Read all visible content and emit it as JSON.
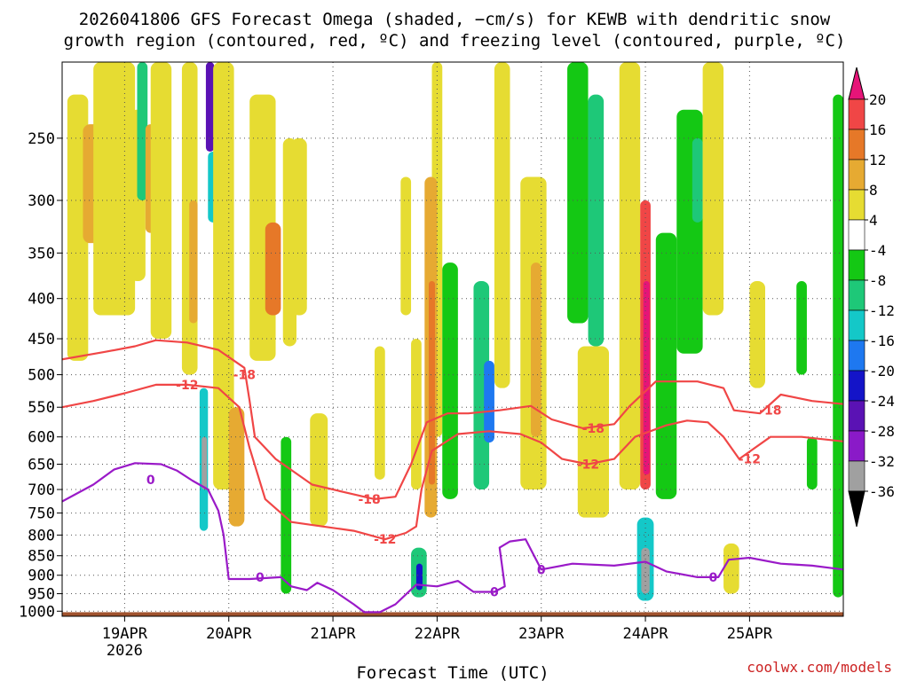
{
  "chart_data": {
    "type": "heatmap",
    "title": {
      "line1": "2026041806 GFS Forecast Omega (shaded, −cm/s) for KEWB with dendritic snow",
      "line2": "growth region (contoured, red, ºC) and freezing level (contoured, purple, ºC)"
    },
    "xlabel": "Forecast Time (UTC)",
    "ylabel": "",
    "credit": "coolwx.com/models",
    "x_range_days": [
      -0.6,
      6.9
    ],
    "x_ticks": [
      {
        "day": 0,
        "label": "19APR",
        "sub": "2026"
      },
      {
        "day": 1,
        "label": "20APR",
        "sub": ""
      },
      {
        "day": 2,
        "label": "21APR",
        "sub": ""
      },
      {
        "day": 3,
        "label": "22APR",
        "sub": ""
      },
      {
        "day": 4,
        "label": "23APR",
        "sub": ""
      },
      {
        "day": 5,
        "label": "24APR",
        "sub": ""
      },
      {
        "day": 6,
        "label": "25APR",
        "sub": ""
      }
    ],
    "y_ticks": [
      250,
      300,
      350,
      400,
      450,
      500,
      550,
      600,
      650,
      700,
      750,
      800,
      850,
      900,
      950,
      1000
    ],
    "y_range_hpa": [
      200,
      1015
    ],
    "colorbar": {
      "levels": [
        -36,
        -32,
        -28,
        -24,
        -20,
        -16,
        -12,
        -8,
        -4,
        4,
        8,
        12,
        16,
        20
      ],
      "colors": [
        "#000000",
        "#a0a0a0",
        "#8a1ac8",
        "#5a12b4",
        "#1414c8",
        "#1e78f0",
        "#14c8c8",
        "#1ec878",
        "#14c814",
        "#ffffff",
        "#e6dc32",
        "#e6aa32",
        "#e67828",
        "#f04646",
        "#e61478"
      ]
    },
    "omega_cells": [
      {
        "d0": -0.55,
        "d1": -0.35,
        "p0": 220,
        "p1": 480,
        "v": 6
      },
      {
        "d0": -0.4,
        "d1": -0.2,
        "p0": 240,
        "p1": 340,
        "v": 10
      },
      {
        "d0": -0.25,
        "d1": -0.05,
        "p0": 260,
        "p1": 360,
        "v": 13
      },
      {
        "d0": -0.3,
        "d1": 0.1,
        "p0": 200,
        "p1": 420,
        "v": 5
      },
      {
        "d0": 0.05,
        "d1": 0.2,
        "p0": 230,
        "p1": 380,
        "v": 6
      },
      {
        "d0": 0.12,
        "d1": 0.22,
        "p0": 200,
        "p1": 300,
        "v": -12
      },
      {
        "d0": 0.2,
        "d1": 0.3,
        "p0": 240,
        "p1": 330,
        "v": 10
      },
      {
        "d0": 0.25,
        "d1": 0.45,
        "p0": 200,
        "p1": 450,
        "v": 5
      },
      {
        "d0": 0.55,
        "d1": 0.7,
        "p0": 200,
        "p1": 500,
        "v": 5
      },
      {
        "d0": 0.62,
        "d1": 0.7,
        "p0": 300,
        "p1": 430,
        "v": 9
      },
      {
        "d0": 0.78,
        "d1": 0.86,
        "p0": 200,
        "p1": 260,
        "v": -26
      },
      {
        "d0": 0.8,
        "d1": 0.9,
        "p0": 260,
        "p1": 320,
        "v": -16
      },
      {
        "d0": 0.72,
        "d1": 0.8,
        "p0": 520,
        "p1": 790,
        "v": -14
      },
      {
        "d0": 0.74,
        "d1": 0.79,
        "p0": 600,
        "p1": 700,
        "v": -36
      },
      {
        "d0": 0.85,
        "d1": 1.05,
        "p0": 200,
        "p1": 700,
        "v": 6
      },
      {
        "d0": 1.0,
        "d1": 1.15,
        "p0": 550,
        "p1": 780,
        "v": 9
      },
      {
        "d0": 1.2,
        "d1": 1.45,
        "p0": 220,
        "p1": 480,
        "v": 6
      },
      {
        "d0": 1.35,
        "d1": 1.5,
        "p0": 320,
        "p1": 420,
        "v": 12
      },
      {
        "d0": 1.52,
        "d1": 1.65,
        "p0": 250,
        "p1": 460,
        "v": 5
      },
      {
        "d0": 1.5,
        "d1": 1.6,
        "p0": 600,
        "p1": 950,
        "v": -8
      },
      {
        "d0": 1.6,
        "d1": 1.75,
        "p0": 250,
        "p1": 420,
        "v": 6
      },
      {
        "d0": 1.78,
        "d1": 1.95,
        "p0": 560,
        "p1": 780,
        "v": 5
      },
      {
        "d0": 2.4,
        "d1": 2.5,
        "p0": 460,
        "p1": 680,
        "v": 5
      },
      {
        "d0": 2.65,
        "d1": 2.75,
        "p0": 280,
        "p1": 420,
        "v": 5
      },
      {
        "d0": 2.75,
        "d1": 2.85,
        "p0": 450,
        "p1": 700,
        "v": 5
      },
      {
        "d0": 2.95,
        "d1": 3.05,
        "p0": 200,
        "p1": 600,
        "v": 5
      },
      {
        "d0": 2.88,
        "d1": 3.0,
        "p0": 280,
        "p1": 760,
        "v": 10
      },
      {
        "d0": 2.92,
        "d1": 2.98,
        "p0": 380,
        "p1": 690,
        "v": 15
      },
      {
        "d0": 2.75,
        "d1": 2.9,
        "p0": 830,
        "p1": 960,
        "v": -12
      },
      {
        "d0": 2.8,
        "d1": 2.86,
        "p0": 870,
        "p1": 940,
        "v": -24
      },
      {
        "d0": 3.05,
        "d1": 3.2,
        "p0": 360,
        "p1": 720,
        "v": -8
      },
      {
        "d0": 3.35,
        "d1": 3.5,
        "p0": 380,
        "p1": 700,
        "v": -10
      },
      {
        "d0": 3.45,
        "d1": 3.55,
        "p0": 480,
        "p1": 610,
        "v": -18
      },
      {
        "d0": 3.55,
        "d1": 3.7,
        "p0": 200,
        "p1": 520,
        "v": 5
      },
      {
        "d0": 3.8,
        "d1": 4.05,
        "p0": 280,
        "p1": 700,
        "v": 6
      },
      {
        "d0": 3.9,
        "d1": 4.0,
        "p0": 360,
        "p1": 600,
        "v": 11
      },
      {
        "d0": 4.25,
        "d1": 4.45,
        "p0": 200,
        "p1": 430,
        "v": -8
      },
      {
        "d0": 4.45,
        "d1": 4.6,
        "p0": 220,
        "p1": 460,
        "v": -12
      },
      {
        "d0": 4.35,
        "d1": 4.65,
        "p0": 460,
        "p1": 760,
        "v": 5
      },
      {
        "d0": 4.75,
        "d1": 4.95,
        "p0": 200,
        "p1": 700,
        "v": 5
      },
      {
        "d0": 4.95,
        "d1": 5.05,
        "p0": 300,
        "p1": 700,
        "v": 18
      },
      {
        "d0": 4.98,
        "d1": 5.04,
        "p0": 380,
        "p1": 670,
        "v": 21
      },
      {
        "d0": 4.92,
        "d1": 5.08,
        "p0": 760,
        "p1": 970,
        "v": -14
      },
      {
        "d0": 4.96,
        "d1": 5.04,
        "p0": 830,
        "p1": 950,
        "v": -36
      },
      {
        "d0": 5.1,
        "d1": 5.3,
        "p0": 330,
        "p1": 720,
        "v": -8
      },
      {
        "d0": 5.3,
        "d1": 5.55,
        "p0": 230,
        "p1": 470,
        "v": -8
      },
      {
        "d0": 5.45,
        "d1": 5.55,
        "p0": 250,
        "p1": 320,
        "v": -12
      },
      {
        "d0": 5.55,
        "d1": 5.75,
        "p0": 200,
        "p1": 420,
        "v": 5
      },
      {
        "d0": 5.75,
        "d1": 5.9,
        "p0": 820,
        "p1": 950,
        "v": 6
      },
      {
        "d0": 6.0,
        "d1": 6.15,
        "p0": 380,
        "p1": 520,
        "v": 5
      },
      {
        "d0": 6.45,
        "d1": 6.55,
        "p0": 380,
        "p1": 500,
        "v": -8
      },
      {
        "d0": 6.55,
        "d1": 6.65,
        "p0": 600,
        "p1": 700,
        "v": -8
      },
      {
        "d0": 6.8,
        "d1": 6.9,
        "p0": 220,
        "p1": 960,
        "v": -8
      }
    ],
    "terrain": {
      "color": "#a0522d",
      "pressure_top": 1003
    },
    "contours": [
      {
        "name": "m18-isotherm",
        "color": "#f04646",
        "label": "-18",
        "label_points": [
          [
            1.15,
            500
          ],
          [
            2.35,
            720
          ],
          [
            4.5,
            585
          ],
          [
            6.2,
            555
          ]
        ],
        "points": [
          [
            -0.6,
            478
          ],
          [
            -0.2,
            468
          ],
          [
            0.1,
            460
          ],
          [
            0.3,
            452
          ],
          [
            0.6,
            455
          ],
          [
            0.9,
            465
          ],
          [
            1.15,
            490
          ],
          [
            1.2,
            540
          ],
          [
            1.25,
            600
          ],
          [
            1.45,
            640
          ],
          [
            1.8,
            690
          ],
          [
            2.1,
            705
          ],
          [
            2.4,
            720
          ],
          [
            2.6,
            715
          ],
          [
            2.75,
            650
          ],
          [
            2.9,
            575
          ],
          [
            3.1,
            560
          ],
          [
            3.3,
            560
          ],
          [
            3.6,
            555
          ],
          [
            3.9,
            548
          ],
          [
            4.1,
            570
          ],
          [
            4.4,
            585
          ],
          [
            4.7,
            578
          ],
          [
            4.85,
            548
          ],
          [
            5.1,
            510
          ],
          [
            5.5,
            510
          ],
          [
            5.75,
            520
          ],
          [
            5.85,
            555
          ],
          [
            6.1,
            560
          ],
          [
            6.3,
            530
          ],
          [
            6.6,
            540
          ],
          [
            6.9,
            545
          ]
        ]
      },
      {
        "name": "m12-isotherm",
        "color": "#f04646",
        "label": "-12",
        "label_points": [
          [
            0.6,
            515
          ],
          [
            2.5,
            810
          ],
          [
            4.45,
            650
          ],
          [
            6.0,
            640
          ]
        ],
        "points": [
          [
            -0.6,
            550
          ],
          [
            -0.3,
            540
          ],
          [
            0.0,
            528
          ],
          [
            0.3,
            515
          ],
          [
            0.6,
            515
          ],
          [
            0.9,
            520
          ],
          [
            1.1,
            550
          ],
          [
            1.2,
            620
          ],
          [
            1.35,
            720
          ],
          [
            1.6,
            770
          ],
          [
            1.9,
            780
          ],
          [
            2.2,
            790
          ],
          [
            2.5,
            810
          ],
          [
            2.7,
            795
          ],
          [
            2.8,
            780
          ],
          [
            2.85,
            700
          ],
          [
            2.95,
            625
          ],
          [
            3.2,
            595
          ],
          [
            3.5,
            590
          ],
          [
            3.8,
            595
          ],
          [
            4.0,
            610
          ],
          [
            4.2,
            640
          ],
          [
            4.45,
            650
          ],
          [
            4.7,
            640
          ],
          [
            4.9,
            600
          ],
          [
            5.2,
            580
          ],
          [
            5.4,
            572
          ],
          [
            5.6,
            575
          ],
          [
            5.75,
            600
          ],
          [
            5.9,
            640
          ],
          [
            6.2,
            600
          ],
          [
            6.5,
            600
          ],
          [
            6.9,
            608
          ]
        ]
      },
      {
        "name": "freezing-level",
        "color": "#9a1ac8",
        "label": "0",
        "label_points": [
          [
            0.25,
            680
          ],
          [
            1.3,
            905
          ],
          [
            3.55,
            945
          ],
          [
            4.0,
            885
          ],
          [
            5.65,
            905
          ]
        ],
        "points": [
          [
            -0.6,
            725
          ],
          [
            -0.3,
            690
          ],
          [
            -0.1,
            660
          ],
          [
            0.1,
            648
          ],
          [
            0.35,
            650
          ],
          [
            0.5,
            662
          ],
          [
            0.65,
            682
          ],
          [
            0.8,
            700
          ],
          [
            0.9,
            745
          ],
          [
            0.95,
            800
          ],
          [
            1.0,
            910
          ],
          [
            1.2,
            910
          ],
          [
            1.5,
            905
          ],
          [
            1.6,
            930
          ],
          [
            1.75,
            940
          ],
          [
            1.85,
            920
          ],
          [
            2.0,
            940
          ],
          [
            2.2,
            980
          ],
          [
            2.3,
            1003
          ],
          [
            2.45,
            1003
          ],
          [
            2.6,
            980
          ],
          [
            2.8,
            925
          ],
          [
            3.0,
            930
          ],
          [
            3.2,
            915
          ],
          [
            3.35,
            945
          ],
          [
            3.55,
            945
          ],
          [
            3.65,
            930
          ],
          [
            3.6,
            830
          ],
          [
            3.7,
            815
          ],
          [
            3.85,
            810
          ],
          [
            4.0,
            885
          ],
          [
            4.3,
            870
          ],
          [
            4.7,
            875
          ],
          [
            5.0,
            865
          ],
          [
            5.2,
            890
          ],
          [
            5.5,
            905
          ],
          [
            5.7,
            905
          ],
          [
            5.8,
            860
          ],
          [
            6.0,
            855
          ],
          [
            6.3,
            870
          ],
          [
            6.6,
            875
          ],
          [
            6.9,
            885
          ]
        ]
      }
    ]
  }
}
